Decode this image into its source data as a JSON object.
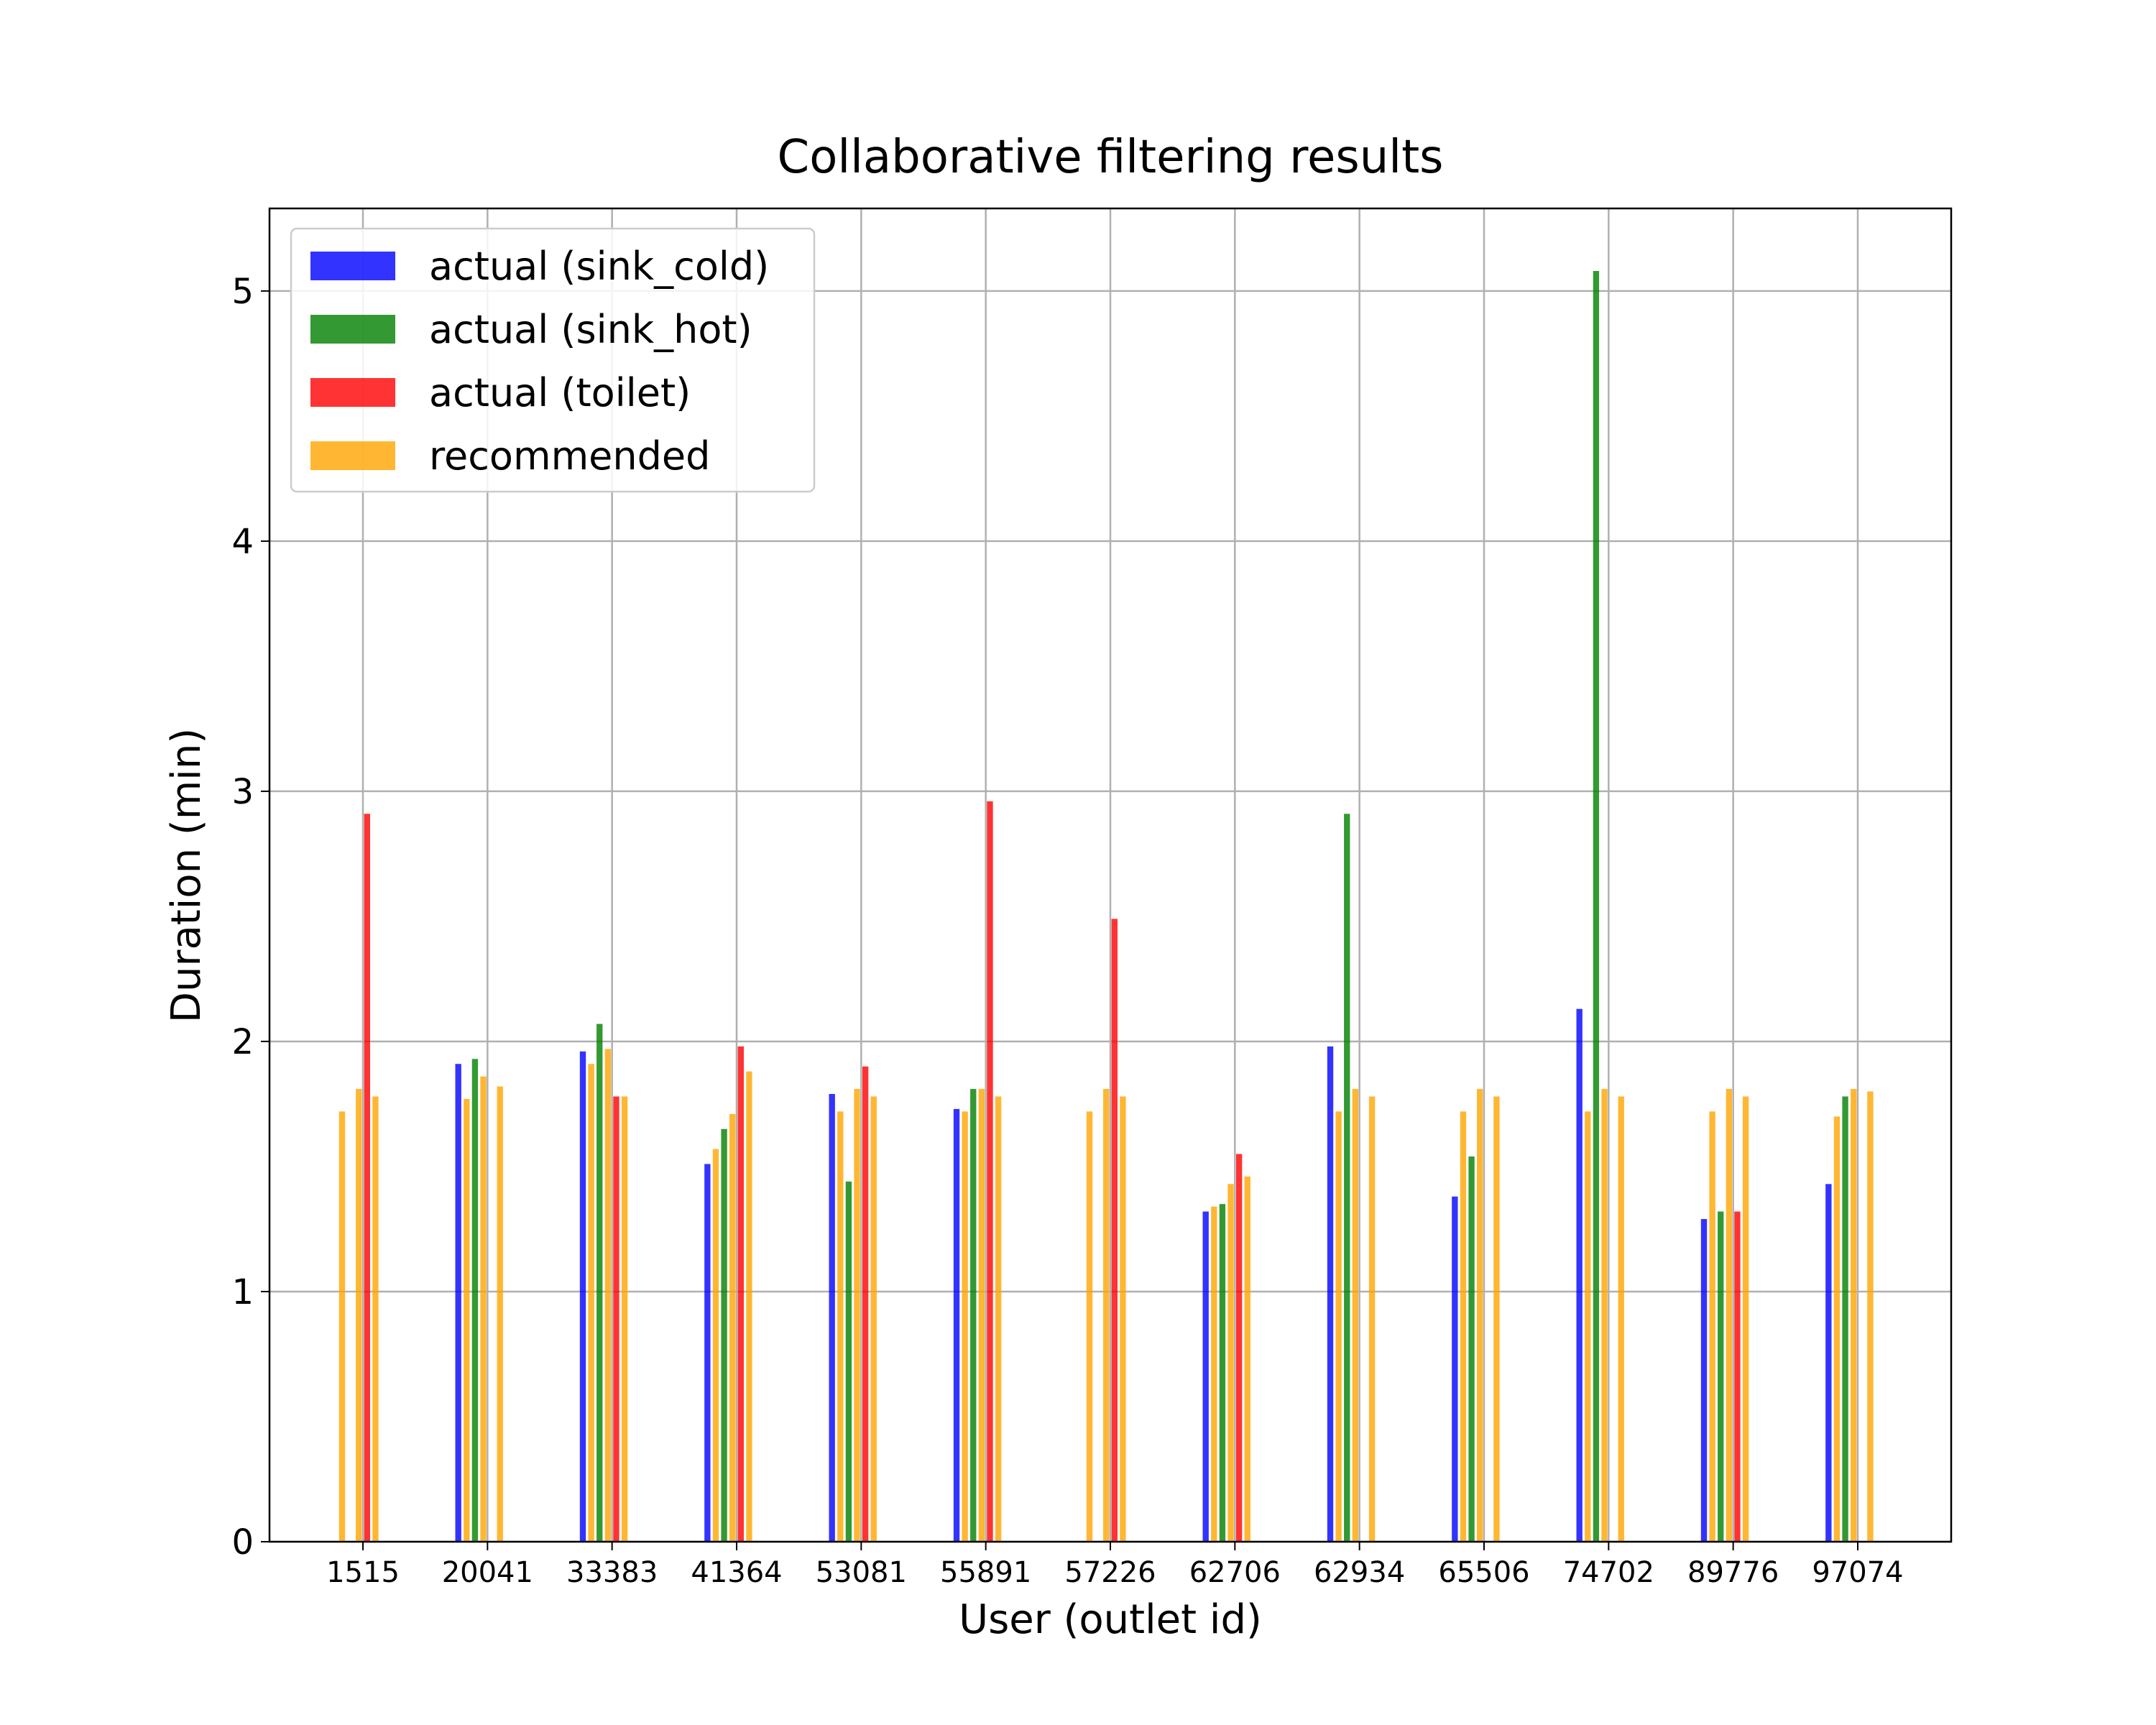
{
  "chart_data": {
    "type": "bar",
    "title": "Collaborative filtering results",
    "xlabel": "User (outlet id)",
    "ylabel": "Duration (min)",
    "ylim": [
      0,
      5.33
    ],
    "yticks": [
      0,
      1,
      2,
      3,
      4,
      5
    ],
    "grid": true,
    "legend_position": "top-left",
    "categories": [
      "1515",
      "20041",
      "33383",
      "41364",
      "53081",
      "55891",
      "57226",
      "62706",
      "62934",
      "65506",
      "74702",
      "89776",
      "97074"
    ],
    "series": [
      {
        "name": "actual (sink_cold)",
        "color": "#0000ff",
        "values": [
          0,
          1.91,
          1.96,
          1.51,
          1.79,
          1.73,
          0,
          1.32,
          1.98,
          1.38,
          2.13,
          1.29,
          1.43
        ]
      },
      {
        "name": "actual (sink_hot)",
        "color": "#008000",
        "values": [
          0,
          1.93,
          2.07,
          1.65,
          1.44,
          1.81,
          0,
          1.35,
          2.91,
          1.54,
          5.08,
          1.32,
          1.78
        ]
      },
      {
        "name": "actual (toilet)",
        "color": "#ff0000",
        "values": [
          2.91,
          0,
          1.78,
          1.98,
          1.9,
          2.96,
          2.49,
          1.55,
          0,
          0,
          0,
          1.32,
          0
        ]
      },
      {
        "name": "recommended",
        "color": "#ffa500",
        "values": [
          [
            1.72,
            1.81,
            1.78
          ],
          [
            1.77,
            1.86,
            1.82
          ],
          [
            1.91,
            1.97,
            1.78
          ],
          [
            1.57,
            1.71,
            1.88
          ],
          [
            1.72,
            1.81,
            1.78
          ],
          [
            1.72,
            1.81,
            1.78
          ],
          [
            1.72,
            1.81,
            1.78
          ],
          [
            1.34,
            1.43,
            1.46
          ],
          [
            1.72,
            1.81,
            1.78
          ],
          [
            1.72,
            1.81,
            1.78
          ],
          [
            1.72,
            1.81,
            1.78
          ],
          [
            1.72,
            1.81,
            1.78
          ],
          [
            1.7,
            1.81,
            1.8
          ]
        ]
      }
    ]
  }
}
